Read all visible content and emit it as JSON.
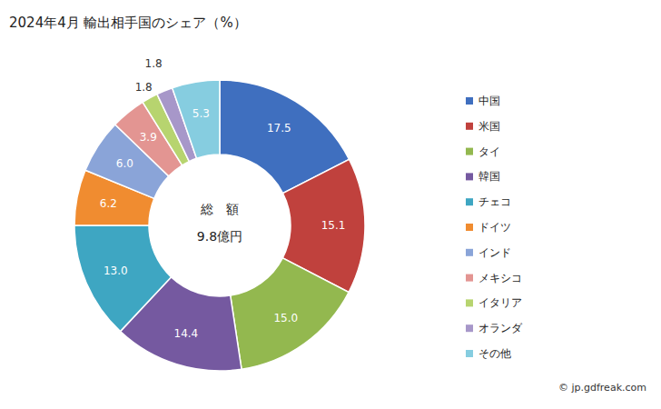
{
  "chart_data": {
    "type": "pie",
    "title": "2024年4月 輸出相手国のシェア（%）",
    "categories": [
      "中国",
      "米国",
      "タイ",
      "韓国",
      "チェコ",
      "ドイツ",
      "インド",
      "メキシコ",
      "イタリア",
      "オランダ",
      "その他"
    ],
    "values": [
      17.5,
      15.1,
      15.0,
      14.4,
      13.0,
      6.2,
      6.0,
      3.9,
      1.8,
      1.8,
      5.3
    ],
    "value_labels": [
      "17.5",
      "15.1",
      "15.0",
      "14.4",
      "13.0",
      "6.2",
      "6.0",
      "3.9",
      "1.8",
      "1.8",
      "5.3"
    ],
    "colors": [
      "#3f6fbf",
      "#c0413d",
      "#93b84f",
      "#7559a0",
      "#3ea6c2",
      "#f08c30",
      "#8aa4d8",
      "#e39592",
      "#b7d46f",
      "#a797c9",
      "#86cde0"
    ],
    "data_labels": true,
    "legend": "right",
    "annotations": [
      "総　額",
      "9.8億円"
    ],
    "source": "© jp.gdfreak.com"
  }
}
